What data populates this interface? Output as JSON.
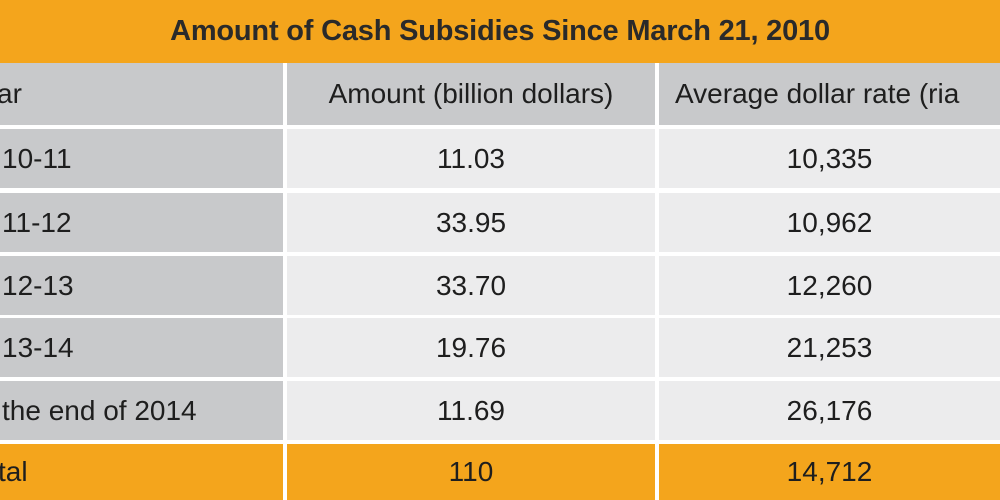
{
  "title": "Amount of Cash Subsidies Since March 21, 2010",
  "colors": {
    "accent_orange": "#f4a51c",
    "header_gray": "#c8c9cb",
    "row_gray": "#ececed",
    "text": "#1e1e1e"
  },
  "chart_data": {
    "type": "table",
    "title": "Amount of Cash Subsidies Since March 21, 2010",
    "columns": [
      "ar",
      "Amount (billion dollars)",
      "Average dollar rate (ria"
    ],
    "rows": [
      {
        "year": "10-11",
        "amount": "11.03",
        "rate": "10,335"
      },
      {
        "year": "11-12",
        "amount": "33.95",
        "rate": "10,962"
      },
      {
        "year": "12-13",
        "amount": "33.70",
        "rate": "12,260"
      },
      {
        "year": "13-14",
        "amount": "19.76",
        "rate": "21,253"
      },
      {
        "year": "the end of 2014",
        "amount": "11.69",
        "rate": "26,176"
      }
    ],
    "total": {
      "label": "tal",
      "amount": "110",
      "rate": "14,712"
    }
  }
}
